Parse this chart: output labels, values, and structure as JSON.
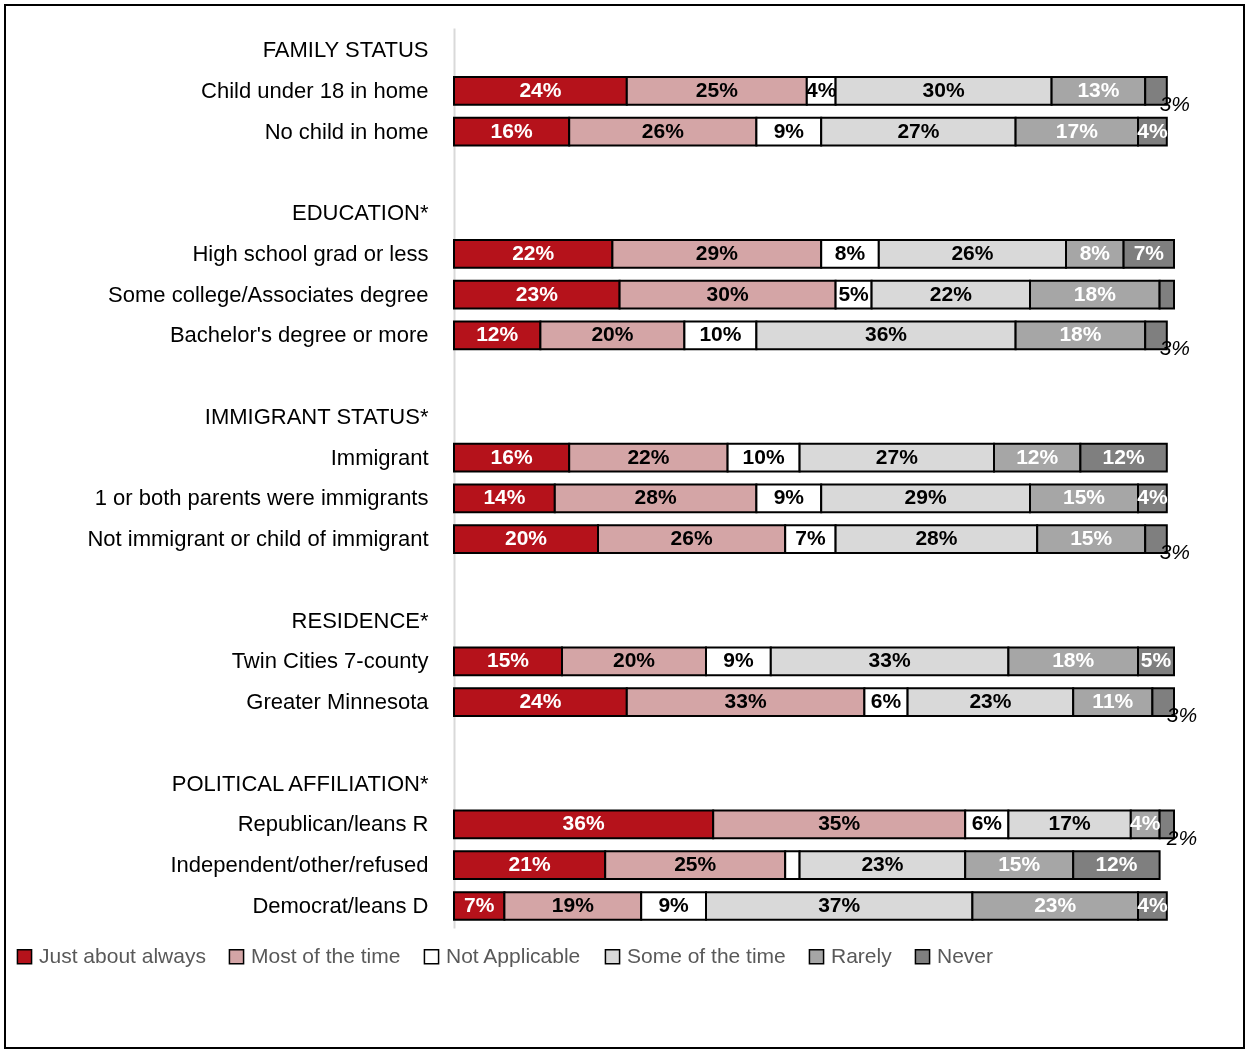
{
  "chart_data": {
    "type": "bar",
    "orientation": "horizontal",
    "stacked": true,
    "legend": "bottom",
    "categories": [
      "FAMILY STATUS",
      "Child under 18 in home",
      "No child in home",
      null,
      "EDUCATION*",
      "High school grad or less",
      "Some college/Associates degree",
      "Bachelor's degree or more",
      null,
      "IMMIGRANT STATUS*",
      "Immigrant",
      "1 or both parents were immigrants",
      "Not immigrant or child of immigrant",
      null,
      "RESIDENCE*",
      "Twin Cities 7-county",
      "Greater Minnesota",
      null,
      "POLITICAL AFFILIATION*",
      "Republican/leans R",
      "Independent/other/refused",
      "Democrat/leans D"
    ],
    "series": [
      {
        "name": "Just about always",
        "color": "#b5121b",
        "values": [
          null,
          24,
          16,
          null,
          null,
          22,
          23,
          12,
          null,
          null,
          16,
          14,
          20,
          null,
          null,
          15,
          24,
          null,
          null,
          36,
          21,
          7
        ],
        "value_labels": [
          null,
          "24%",
          "16%",
          null,
          null,
          "22%",
          "23%",
          "12%",
          null,
          null,
          "16%",
          "14%",
          "20%",
          null,
          null,
          "15%",
          "24%",
          null,
          null,
          "36%",
          "21%",
          "7%"
        ]
      },
      {
        "name": "Most of the time",
        "color": "#d4a5a6",
        "values": [
          null,
          25,
          26,
          null,
          null,
          29,
          30,
          20,
          null,
          null,
          22,
          28,
          26,
          null,
          null,
          20,
          33,
          null,
          null,
          35,
          25,
          19
        ],
        "value_labels": [
          null,
          "25%",
          "26%",
          null,
          null,
          "29%",
          "30%",
          "20%",
          null,
          null,
          "22%",
          "28%",
          "26%",
          null,
          null,
          "20%",
          "33%",
          null,
          null,
          "35%",
          "25%",
          "19%"
        ]
      },
      {
        "name": "Not Applicable",
        "color": "#ffffff",
        "values": [
          null,
          4,
          9,
          null,
          null,
          8,
          5,
          10,
          null,
          null,
          10,
          9,
          7,
          null,
          null,
          9,
          6,
          null,
          null,
          6,
          2,
          9
        ],
        "value_labels": [
          null,
          "4%",
          "9%",
          null,
          null,
          "8%",
          "5%",
          "10%",
          null,
          null,
          "10%",
          "9%",
          "7%",
          null,
          null,
          "9%",
          "6%",
          null,
          null,
          "6%",
          null,
          "9%"
        ]
      },
      {
        "name": "Some of the time",
        "color": "#d9d9d9",
        "values": [
          null,
          30,
          27,
          null,
          null,
          26,
          22,
          36,
          null,
          null,
          27,
          29,
          28,
          null,
          null,
          33,
          23,
          null,
          null,
          17,
          23,
          37
        ],
        "value_labels": [
          null,
          "30%",
          "27%",
          null,
          null,
          "26%",
          "22%",
          "36%",
          null,
          null,
          "27%",
          "29%",
          "28%",
          null,
          null,
          "33%",
          "23%",
          null,
          null,
          "17%",
          "23%",
          "37%"
        ]
      },
      {
        "name": "Rarely",
        "color": "#a6a6a6",
        "values": [
          null,
          13,
          17,
          null,
          null,
          8,
          18,
          18,
          null,
          null,
          12,
          15,
          15,
          null,
          null,
          18,
          11,
          null,
          null,
          4,
          15,
          23
        ],
        "value_labels": [
          null,
          "13%",
          "17%",
          null,
          null,
          "8%",
          "18%",
          "18%",
          null,
          null,
          "12%",
          "15%",
          "15%",
          null,
          null,
          "18%",
          "11%",
          null,
          null,
          "4%",
          "15%",
          "23%"
        ]
      },
      {
        "name": "Never",
        "color": "#7f7f7f",
        "values": [
          null,
          3,
          4,
          null,
          null,
          7,
          2,
          3,
          null,
          null,
          12,
          4,
          3,
          null,
          null,
          5,
          3,
          null,
          null,
          2,
          12,
          4
        ],
        "value_labels": [
          null,
          "3%",
          "4%",
          null,
          null,
          "7%",
          null,
          "3%",
          null,
          null,
          "12%",
          "4%",
          "3%",
          null,
          null,
          "5%",
          "3%",
          null,
          null,
          "2%",
          "12%",
          "4%"
        ]
      }
    ]
  }
}
